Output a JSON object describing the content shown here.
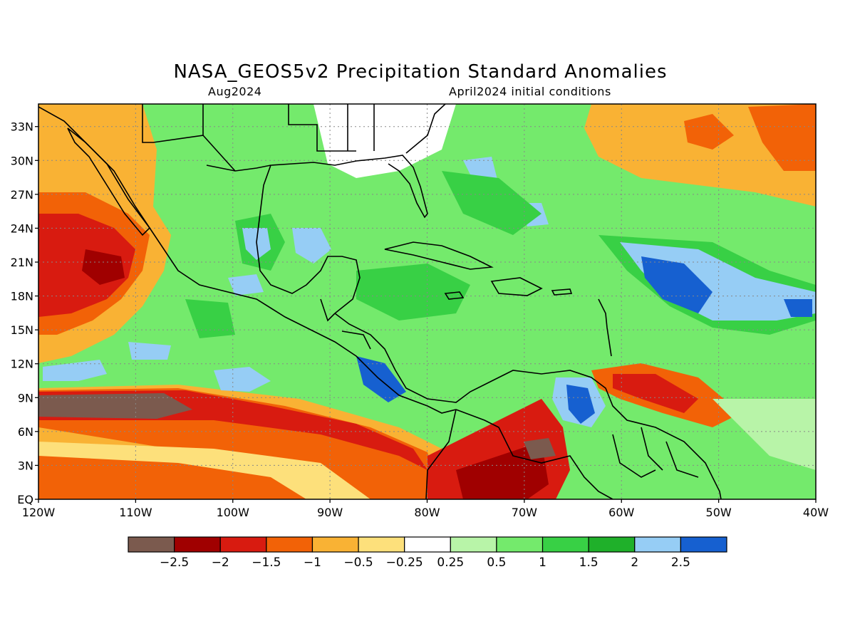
{
  "title": "NASA_GEOS5v2 Precipitation Standard Anomalies",
  "subtitle_left": "Aug2024",
  "subtitle_right": "April2024 initial conditions",
  "map": {
    "lon_range": [
      -120,
      -40
    ],
    "lat_range": [
      0,
      35
    ],
    "lat_ticks": [
      {
        "value": 33,
        "label": "33N"
      },
      {
        "value": 30,
        "label": "30N"
      },
      {
        "value": 27,
        "label": "27N"
      },
      {
        "value": 24,
        "label": "24N"
      },
      {
        "value": 21,
        "label": "21N"
      },
      {
        "value": 18,
        "label": "18N"
      },
      {
        "value": 15,
        "label": "15N"
      },
      {
        "value": 12,
        "label": "12N"
      },
      {
        "value": 9,
        "label": "9N"
      },
      {
        "value": 6,
        "label": "6N"
      },
      {
        "value": 3,
        "label": "3N"
      },
      {
        "value": 0,
        "label": "EQ"
      }
    ],
    "lon_ticks": [
      {
        "value": -120,
        "label": "120W"
      },
      {
        "value": -110,
        "label": "110W"
      },
      {
        "value": -100,
        "label": "100W"
      },
      {
        "value": -90,
        "label": "90W"
      },
      {
        "value": -80,
        "label": "80W"
      },
      {
        "value": -70,
        "label": "70W"
      },
      {
        "value": -60,
        "label": "60W"
      },
      {
        "value": -50,
        "label": "50W"
      },
      {
        "value": -40,
        "label": "40W"
      }
    ],
    "gridlines": "dotted"
  },
  "legend": {
    "colors": [
      "#7b5a4e",
      "#a00000",
      "#d81b10",
      "#f26207",
      "#f9b234",
      "#fde07b",
      "#ffffff",
      "#b8f4a8",
      "#74ea6c",
      "#38d045",
      "#1fb02a",
      "#96cdf5",
      "#1660d0"
    ],
    "labels": [
      "-2.5",
      "-2",
      "-1.5",
      "-1",
      "-0.5",
      "-0.25",
      "0.25",
      "0.5",
      "1",
      "1.5",
      "2",
      "2.5"
    ]
  }
}
